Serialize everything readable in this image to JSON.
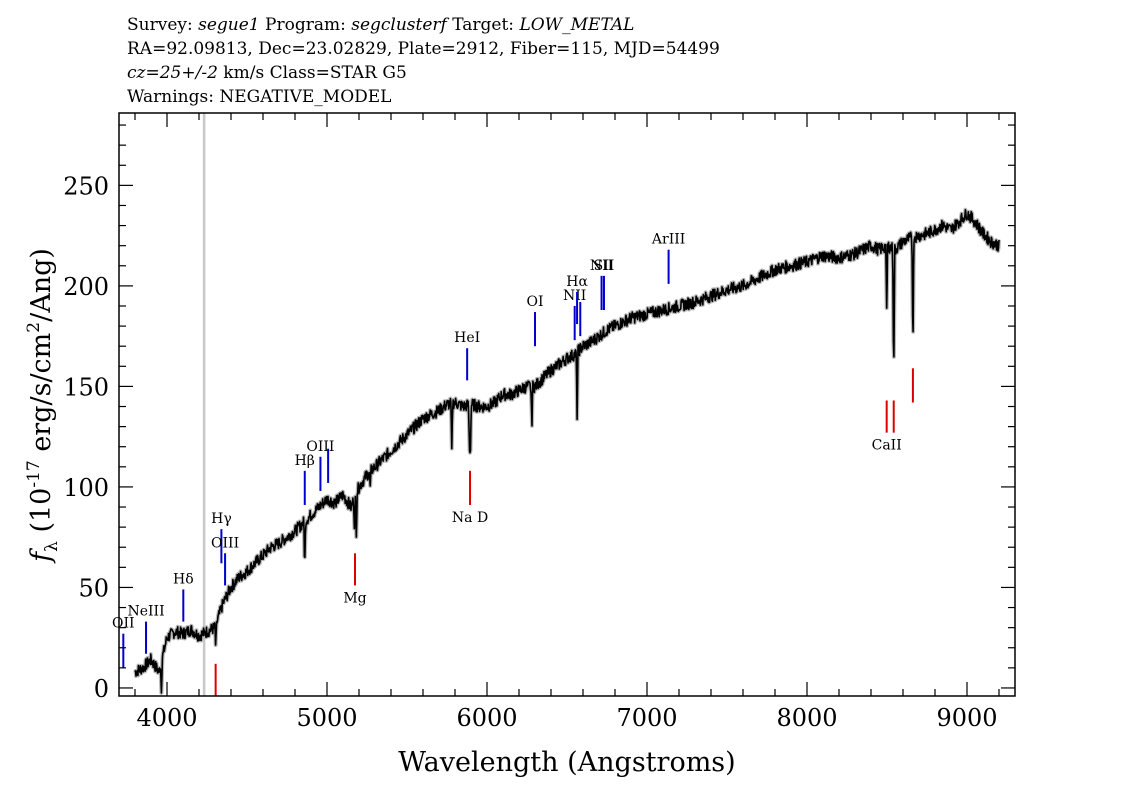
{
  "header": {
    "line1": {
      "survey_label": "Survey:",
      "survey": "segue1",
      "program_label": "Program:",
      "program": "segclusterf",
      "target_label": "Target:",
      "target": "LOW_METAL"
    },
    "line2": "RA=92.09813, Dec=23.02829, Plate=2912, Fiber=115, MJD=54499",
    "line3": {
      "cz": "cz=25+/-2",
      "rest": " km/s Class=STAR G5"
    },
    "line4": "Warnings: NEGATIVE_MODEL"
  },
  "colors": {
    "spectrum": "#000000",
    "emission": "#0000cc",
    "absorption": "#dd0000",
    "marker": "#c8c8c8"
  },
  "chart_data": {
    "type": "line",
    "xlabel": "Wavelength (Angstroms)",
    "ylabel": "f_λ (10^-17 erg/s/cm^2/Ang)",
    "xlim": [
      3700,
      9300
    ],
    "ylim": [
      -4,
      286
    ],
    "x_ticks": [
      4000,
      5000,
      6000,
      7000,
      8000,
      9000
    ],
    "y_ticks": [
      0,
      50,
      100,
      150,
      200,
      250
    ],
    "vertical_marker_x": 4232,
    "spectrum": {
      "x": [
        3800,
        3850,
        3900,
        3950,
        4000,
        4050,
        4100,
        4150,
        4200,
        4250,
        4300,
        4350,
        4400,
        4450,
        4500,
        4550,
        4600,
        4650,
        4700,
        4750,
        4800,
        4850,
        4900,
        4950,
        5000,
        5050,
        5100,
        5150,
        5200,
        5250,
        5300,
        5350,
        5400,
        5450,
        5500,
        5550,
        5600,
        5650,
        5700,
        5750,
        5800,
        5850,
        5900,
        5950,
        6000,
        6050,
        6100,
        6150,
        6200,
        6250,
        6300,
        6350,
        6400,
        6450,
        6500,
        6550,
        6600,
        6650,
        6700,
        6750,
        6800,
        6850,
        6900,
        6950,
        7000,
        7100,
        7200,
        7300,
        7400,
        7500,
        7600,
        7700,
        7800,
        7900,
        8000,
        8100,
        8200,
        8300,
        8400,
        8450,
        8500,
        8550,
        8600,
        8650,
        8700,
        8750,
        8800,
        8850,
        8900,
        8950,
        9000,
        9050,
        9100,
        9150,
        9200
      ],
      "y": [
        8,
        10,
        14,
        8,
        25,
        28,
        27,
        29,
        26,
        28,
        30,
        42,
        50,
        55,
        58,
        62,
        66,
        70,
        72,
        75,
        78,
        82,
        86,
        90,
        94,
        92,
        96,
        90,
        100,
        106,
        110,
        114,
        118,
        122,
        126,
        130,
        134,
        136,
        138,
        141,
        142,
        140,
        141,
        140,
        140,
        142,
        146,
        146,
        148,
        150,
        150,
        154,
        158,
        161,
        164,
        166,
        170,
        172,
        175,
        178,
        180,
        182,
        184,
        185,
        186,
        188,
        190,
        192,
        195,
        198,
        200,
        204,
        208,
        210,
        212,
        215,
        214,
        216,
        220,
        218,
        220,
        218,
        222,
        224,
        225,
        226,
        228,
        230,
        228,
        232,
        236,
        232,
        226,
        222,
        220
      ],
      "absorption_dips": [
        {
          "x": 3965,
          "y": 0
        },
        {
          "x": 4305,
          "y": 20
        },
        {
          "x": 4861,
          "y": 60
        },
        {
          "x": 5172,
          "y": 80
        },
        {
          "x": 5183,
          "y": 78
        },
        {
          "x": 5270,
          "y": 100
        },
        {
          "x": 5780,
          "y": 118
        },
        {
          "x": 5890,
          "y": 120
        },
        {
          "x": 5896,
          "y": 116
        },
        {
          "x": 6280,
          "y": 130
        },
        {
          "x": 6563,
          "y": 136
        },
        {
          "x": 8498,
          "y": 187
        },
        {
          "x": 8542,
          "y": 152
        },
        {
          "x": 8662,
          "y": 170
        }
      ]
    },
    "emission_lines": [
      {
        "label": "OII",
        "x": 3727,
        "y0": 10,
        "y1": 27
      },
      {
        "label": "NeIII",
        "x": 3869,
        "y0": 17,
        "y1": 33
      },
      {
        "label": "Hδ",
        "x": 4102,
        "y0": 33,
        "y1": 49
      },
      {
        "label": "Hγ",
        "x": 4340,
        "y0": 62,
        "y1": 79
      },
      {
        "label": "OIII",
        "x": 4363,
        "y0": 51,
        "y1": 67
      },
      {
        "label": "Hβ",
        "x": 4861,
        "y0": 91,
        "y1": 108
      },
      {
        "label": "OIII",
        "x": 4959,
        "y0": 98,
        "y1": 115
      },
      {
        "label": "",
        "x": 5007,
        "y0": 102,
        "y1": 119
      },
      {
        "label": "HeI",
        "x": 5876,
        "y0": 153,
        "y1": 169
      },
      {
        "label": "OI",
        "x": 6300,
        "y0": 170,
        "y1": 187
      },
      {
        "label": "NII",
        "x": 6548,
        "y0": 173,
        "y1": 190
      },
      {
        "label": "Hα",
        "x": 6563,
        "y0": 181,
        "y1": 197
      },
      {
        "label": "",
        "x": 6583,
        "y0": 175,
        "y1": 192
      },
      {
        "label": "NII",
        "x": 6716,
        "y0": 188,
        "y1": 205
      },
      {
        "label": "SII",
        "x": 6731,
        "y0": 188,
        "y1": 205
      },
      {
        "label": "ArIII",
        "x": 7135,
        "y0": 201,
        "y1": 218
      }
    ],
    "absorption_lines": [
      {
        "label": "",
        "x": 4304,
        "y0": -4,
        "y1": 12
      },
      {
        "label": "Mg",
        "x": 5175,
        "y0": 51,
        "y1": 67
      },
      {
        "label": "Na D",
        "x": 5894,
        "y0": 91,
        "y1": 108
      },
      {
        "label": "CaII",
        "x": 8498,
        "y0": 127,
        "y1": 143
      },
      {
        "label": "",
        "x": 8542,
        "y0": 127,
        "y1": 143
      },
      {
        "label": "",
        "x": 8662,
        "y0": 142,
        "y1": 159
      }
    ]
  }
}
